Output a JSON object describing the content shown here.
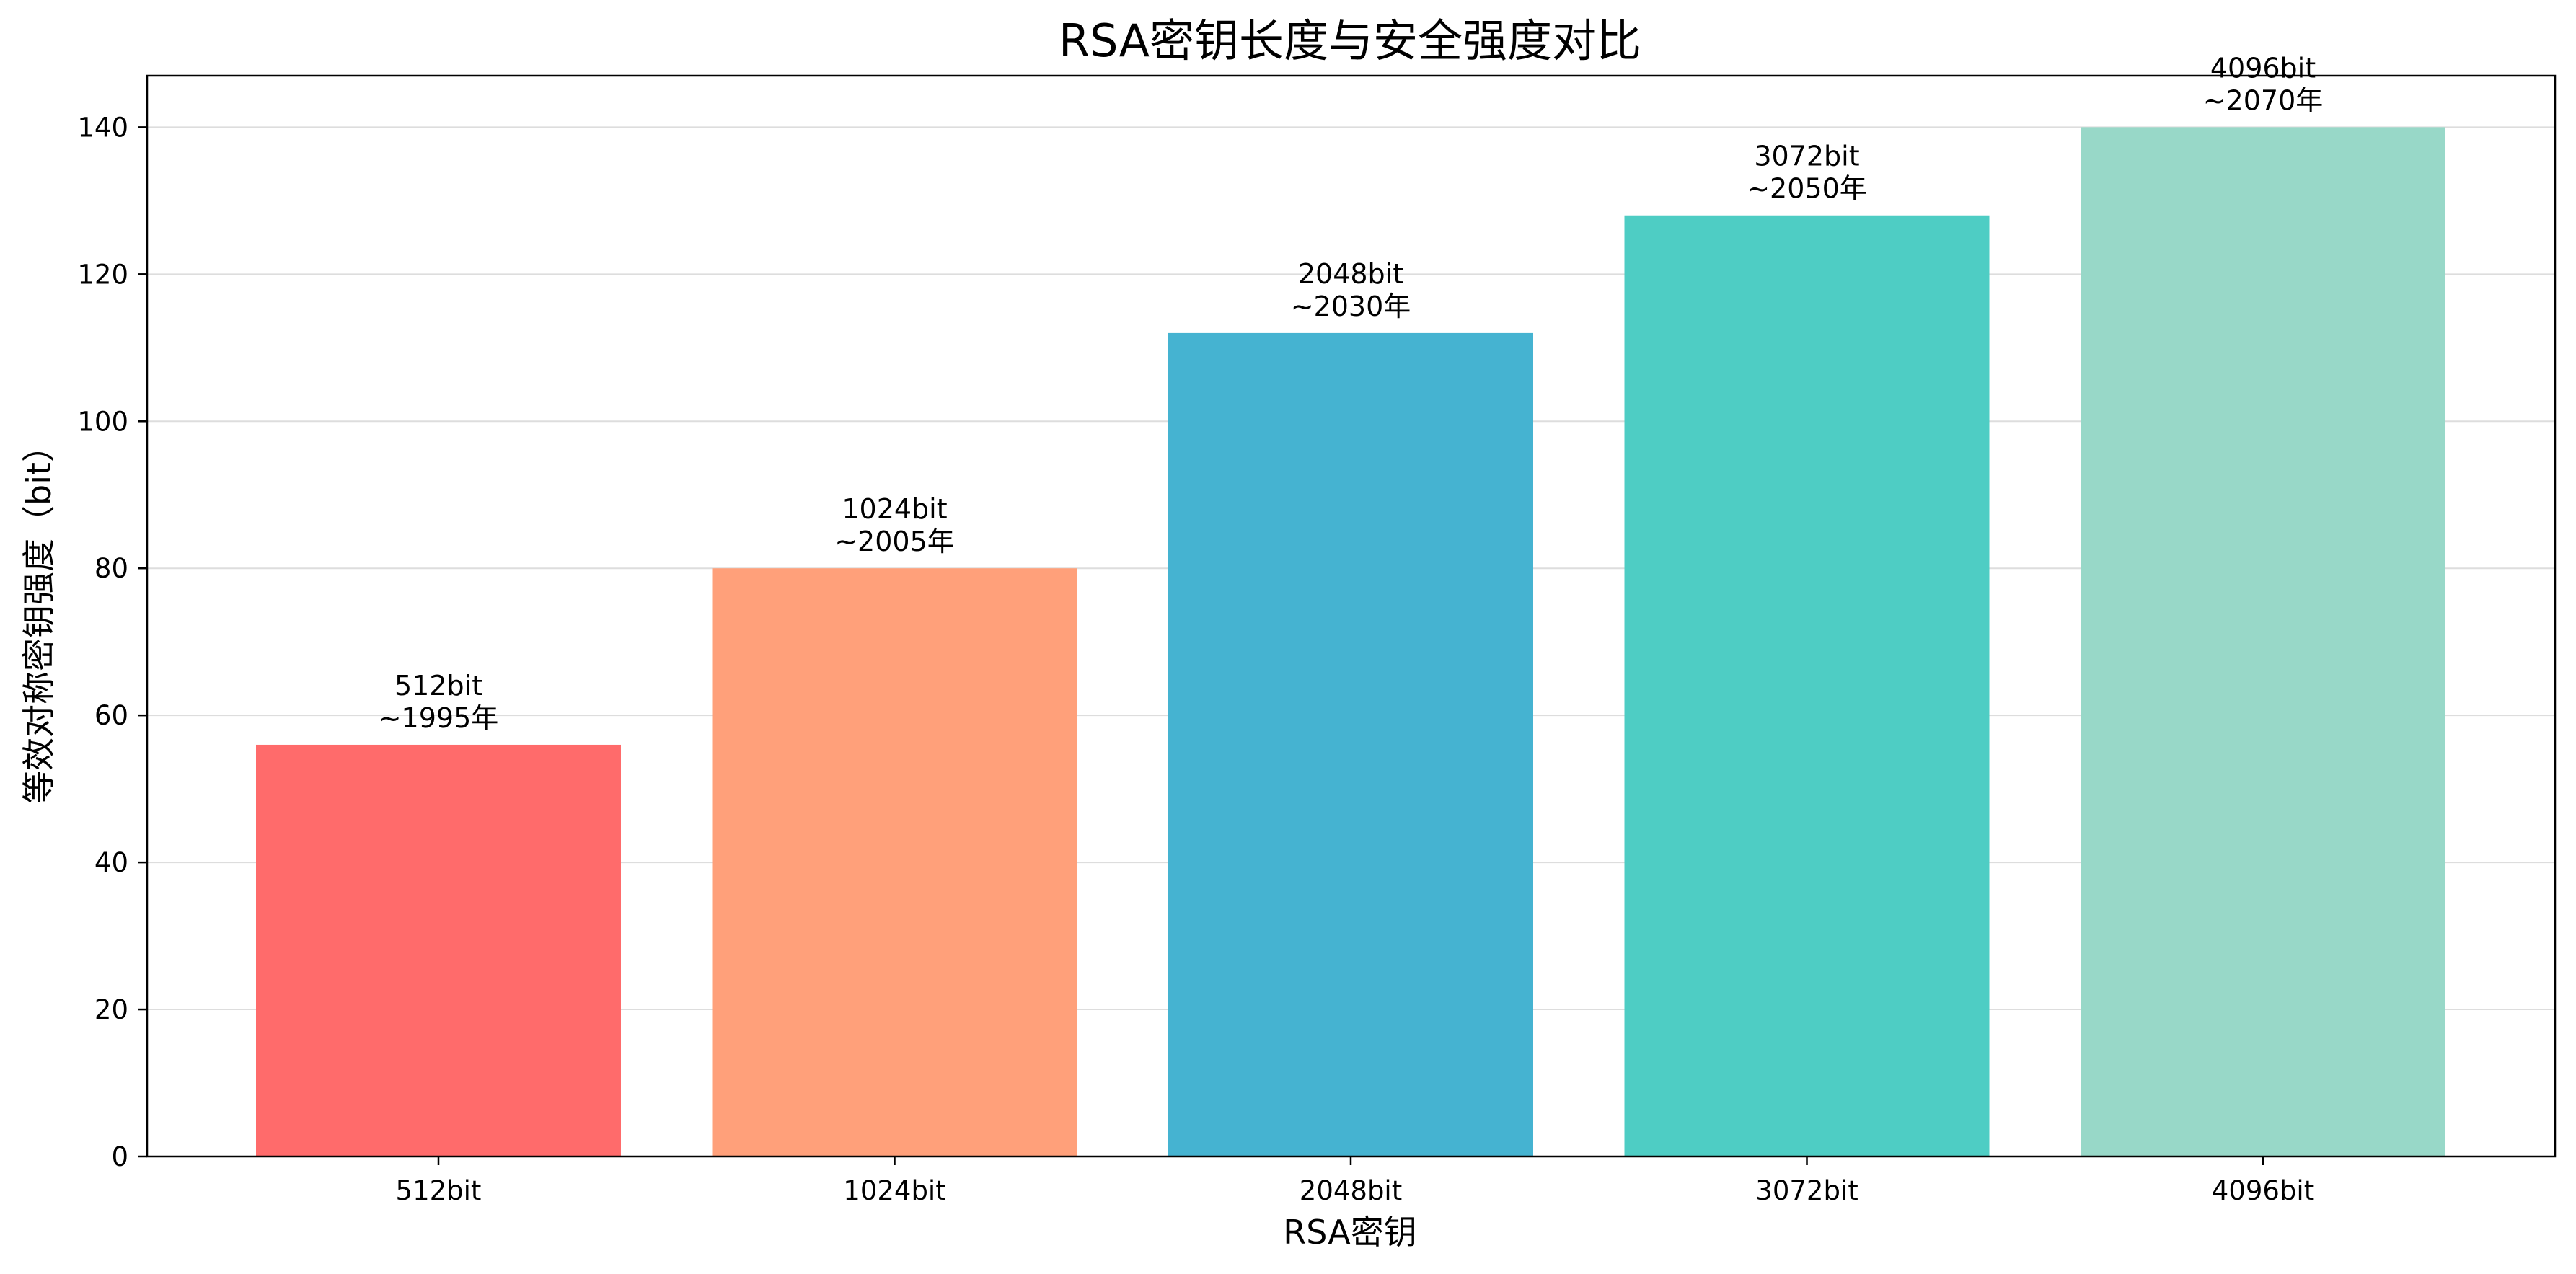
{
  "chart_data": {
    "type": "bar",
    "title": "RSA密钥长度与安全强度对比",
    "xlabel": "RSA密钥",
    "ylabel": "等效对称密钥强度（bit）",
    "categories": [
      "512bit",
      "1024bit",
      "2048bit",
      "3072bit",
      "4096bit"
    ],
    "values": [
      56,
      80,
      112,
      128,
      140
    ],
    "annotations": [
      [
        "512bit",
        "~1995年"
      ],
      [
        "1024bit",
        "~2005年"
      ],
      [
        "2048bit",
        "~2030年"
      ],
      [
        "3072bit",
        "~2050年"
      ],
      [
        "4096bit",
        "~2070年"
      ]
    ],
    "colors": [
      "#ff6b6b",
      "#ffa07a",
      "#45b3d1",
      "#4ecdc4",
      "#98d8c8"
    ],
    "ylim": [
      0,
      147
    ],
    "yticks": [
      0,
      20,
      40,
      60,
      80,
      100,
      120,
      140
    ],
    "grid": "y",
    "legend": "none"
  }
}
